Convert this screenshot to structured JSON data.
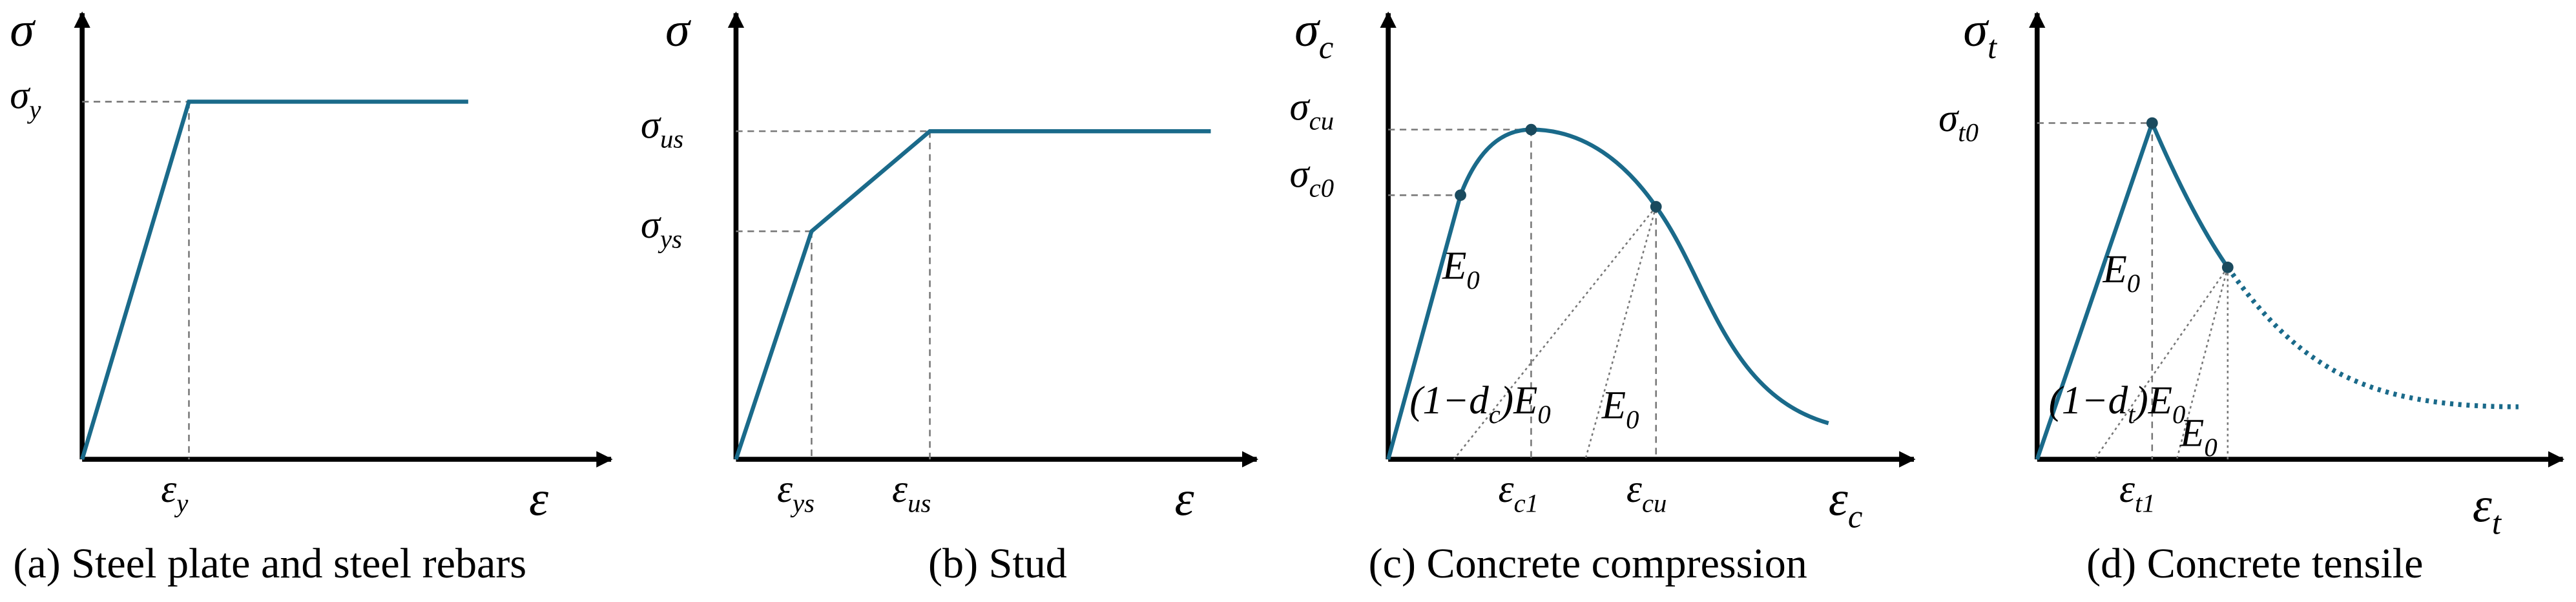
{
  "panels": [
    {
      "caption": "(a) Steel plate and steel rebars",
      "y_axis": [
        "σ"
      ],
      "x_axis": [
        "ε"
      ],
      "labels": [
        [
          "σ",
          "y"
        ],
        [
          "ε",
          "y"
        ]
      ]
    },
    {
      "caption": "(b) Stud",
      "y_axis": [
        "σ"
      ],
      "x_axis": [
        "ε"
      ],
      "labels": [
        [
          "σ",
          "us"
        ],
        [
          "σ",
          "ys"
        ],
        [
          "ε",
          "ys"
        ],
        [
          "ε",
          "us"
        ]
      ]
    },
    {
      "caption": "(c) Concrete compression",
      "y_axis": [
        "σ",
        "c"
      ],
      "x_axis": [
        "ε",
        "c"
      ],
      "labels": [
        [
          "σ",
          "cu"
        ],
        [
          "σ",
          "c0"
        ],
        [
          "E",
          "0"
        ],
        [
          "(1−d",
          "c",
          ")E",
          "0"
        ],
        [
          "E",
          "0"
        ],
        [
          "ε",
          "c1"
        ],
        [
          "ε",
          "cu"
        ]
      ]
    },
    {
      "caption": "(d) Concrete tensile",
      "y_axis": [
        "σ",
        "t"
      ],
      "x_axis": [
        "ε",
        "t"
      ],
      "labels": [
        [
          "σ",
          "t0"
        ],
        [
          "E",
          "0"
        ],
        [
          "(1−d",
          "t",
          ")E",
          "0"
        ],
        [
          "E",
          "0"
        ],
        [
          "ε",
          "t1"
        ]
      ]
    }
  ]
}
